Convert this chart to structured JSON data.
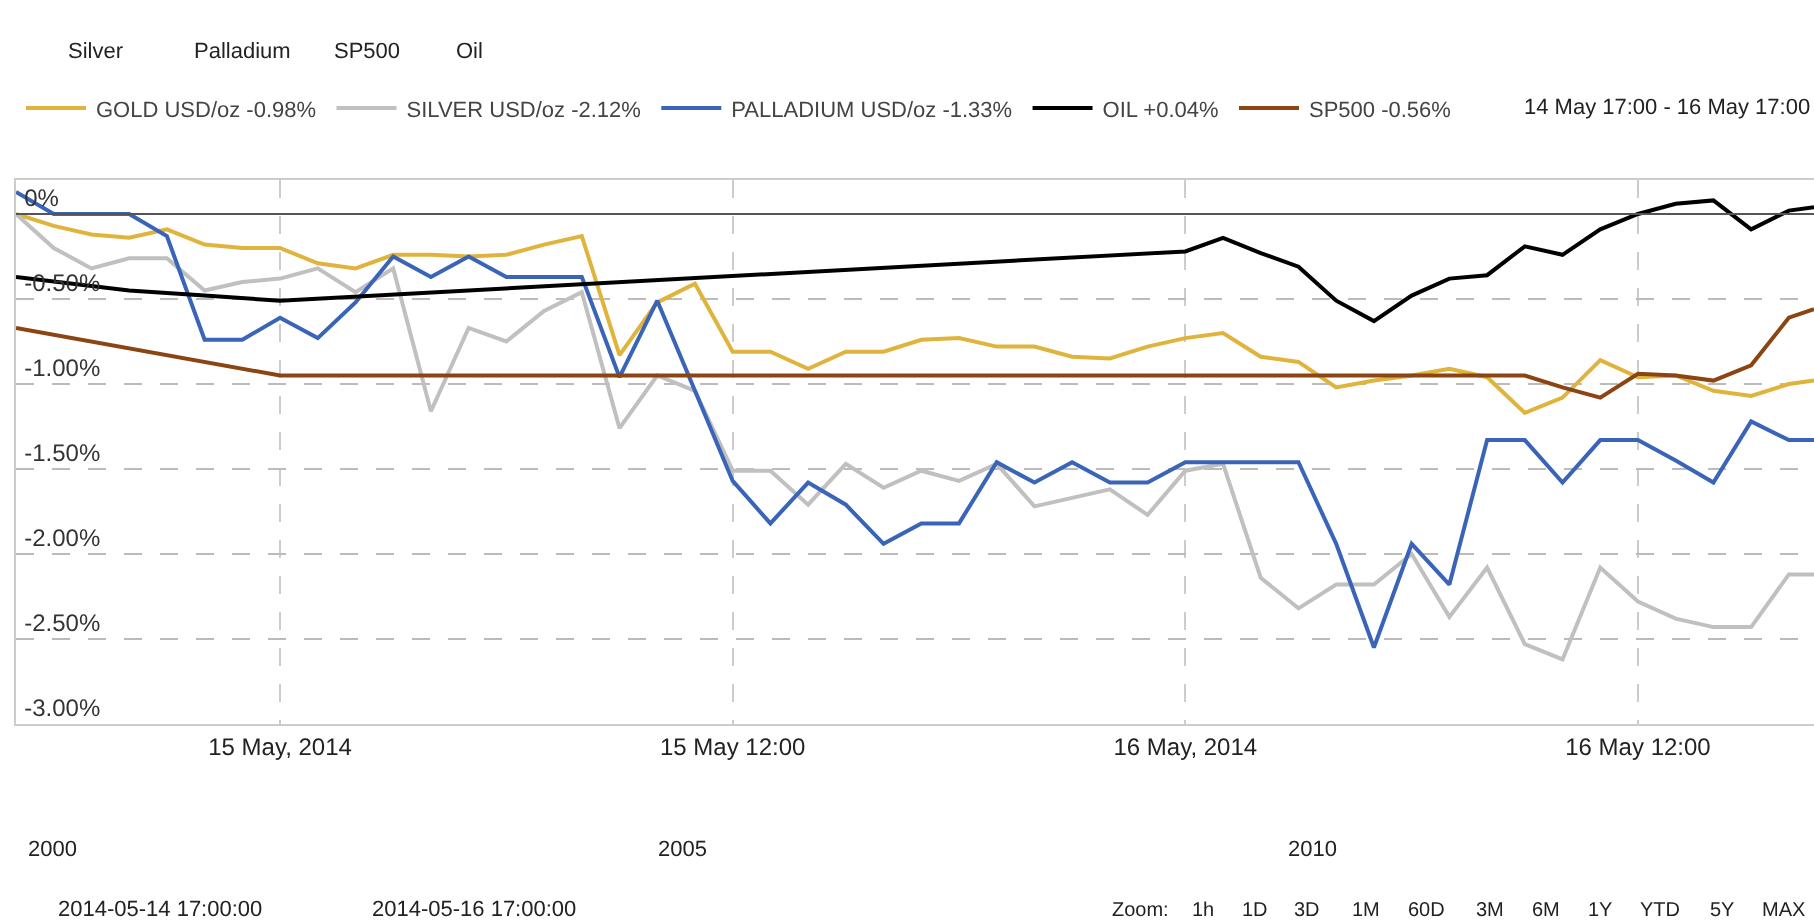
{
  "chart_data": {
    "type": "line",
    "subtitle": "14 May 17:00 - 16 May 17:00",
    "x": [
      "2014-05-14T17:00",
      "2014-05-14T18:00",
      "2014-05-14T19:00",
      "2014-05-14T20:00",
      "2014-05-14T21:00",
      "2014-05-14T22:00",
      "2014-05-14T23:00",
      "2014-05-15T00:00",
      "2014-05-15T01:00",
      "2014-05-15T02:00",
      "2014-05-15T03:00",
      "2014-05-15T04:00",
      "2014-05-15T05:00",
      "2014-05-15T06:00",
      "2014-05-15T07:00",
      "2014-05-15T08:00",
      "2014-05-15T09:00",
      "2014-05-15T10:00",
      "2014-05-15T11:00",
      "2014-05-15T12:00",
      "2014-05-15T13:00",
      "2014-05-15T14:00",
      "2014-05-15T15:00",
      "2014-05-15T16:00",
      "2014-05-15T17:00",
      "2014-05-15T18:00",
      "2014-05-15T19:00",
      "2014-05-15T20:00",
      "2014-05-15T21:00",
      "2014-05-15T22:00",
      "2014-05-15T23:00",
      "2014-05-16T00:00",
      "2014-05-16T01:00",
      "2014-05-16T02:00",
      "2014-05-16T03:00",
      "2014-05-16T04:00",
      "2014-05-16T05:00",
      "2014-05-16T06:00",
      "2014-05-16T07:00",
      "2014-05-16T08:00",
      "2014-05-16T09:00",
      "2014-05-16T10:00",
      "2014-05-16T11:00",
      "2014-05-16T12:00",
      "2014-05-16T13:00",
      "2014-05-16T14:00",
      "2014-05-16T15:00",
      "2014-05-16T16:00",
      "2014-05-16T16:40"
    ],
    "series": [
      {
        "name": "GOLD USD/oz -0.98%",
        "color": "#e0b43c",
        "values": [
          0,
          -0.07,
          -0.12,
          -0.14,
          -0.09,
          -0.18,
          -0.2,
          -0.2,
          -0.29,
          -0.32,
          -0.24,
          -0.24,
          -0.25,
          -0.24,
          -0.18,
          -0.13,
          -0.83,
          -0.52,
          -0.41,
          -0.81,
          -0.81,
          -0.91,
          -0.81,
          -0.81,
          -0.74,
          -0.73,
          -0.78,
          -0.78,
          -0.84,
          -0.85,
          -0.78,
          -0.73,
          -0.7,
          -0.84,
          -0.87,
          -1.02,
          -0.98,
          -0.95,
          -0.91,
          -0.96,
          -1.17,
          -1.08,
          -0.86,
          -0.96,
          -0.95,
          -1.04,
          -1.07,
          -1.0,
          -0.98
        ]
      },
      {
        "name": "SILVER USD/oz -2.12%",
        "color": "#c0c0c0",
        "values": [
          0,
          -0.2,
          -0.32,
          -0.26,
          -0.26,
          -0.45,
          -0.4,
          -0.38,
          -0.32,
          -0.46,
          -0.32,
          -1.16,
          -0.67,
          -0.75,
          -0.57,
          -0.46,
          -1.26,
          -0.95,
          -1.04,
          -1.51,
          -1.51,
          -1.71,
          -1.47,
          -1.61,
          -1.51,
          -1.57,
          -1.47,
          -1.72,
          -1.67,
          -1.62,
          -1.77,
          -1.51,
          -1.47,
          -2.14,
          -2.32,
          -2.18,
          -2.18,
          -2.0,
          -2.37,
          -2.08,
          -2.53,
          -2.62,
          -2.08,
          -2.28,
          -2.38,
          -2.43,
          -2.43,
          -2.12,
          -2.12
        ]
      },
      {
        "name": "PALLADIUM USD/oz -1.33%",
        "color": "#3a64b8",
        "values": [
          0.13,
          0,
          0,
          0,
          -0.13,
          -0.74,
          -0.74,
          -0.61,
          -0.73,
          -0.52,
          -0.25,
          -0.37,
          -0.25,
          -0.37,
          -0.37,
          -0.37,
          -0.96,
          -0.51,
          -1.04,
          -1.57,
          -1.82,
          -1.58,
          -1.71,
          -1.94,
          -1.82,
          -1.82,
          -1.46,
          -1.58,
          -1.46,
          -1.58,
          -1.58,
          -1.46,
          -1.46,
          -1.46,
          -1.46,
          -1.94,
          -2.55,
          -1.94,
          -2.18,
          -1.33,
          -1.33,
          -1.58,
          -1.33,
          -1.33,
          -1.45,
          -1.58,
          -1.22,
          -1.33,
          -1.33
        ]
      },
      {
        "name": "OIL +0.04%",
        "color": "#000000",
        "x": [
          "2014-05-14T17:00",
          "2014-05-14T20:00",
          "2014-05-14T22:00",
          "2014-05-15T00:00",
          "2014-05-16T00:00",
          "2014-05-16T01:00",
          "2014-05-16T02:00",
          "2014-05-16T03:00",
          "2014-05-16T04:00",
          "2014-05-16T05:00",
          "2014-05-16T06:00",
          "2014-05-16T07:00",
          "2014-05-16T08:00",
          "2014-05-16T09:00",
          "2014-05-16T10:00",
          "2014-05-16T11:00",
          "2014-05-16T12:00",
          "2014-05-16T13:00",
          "2014-05-16T14:00",
          "2014-05-16T15:00",
          "2014-05-16T16:00",
          "2014-05-16T16:40"
        ],
        "values": [
          -0.37,
          -0.45,
          -0.48,
          -0.51,
          -0.22,
          -0.14,
          -0.23,
          -0.31,
          -0.51,
          -0.63,
          -0.48,
          -0.38,
          -0.36,
          -0.19,
          -0.24,
          -0.09,
          0,
          0.06,
          0.08,
          -0.09,
          0.02,
          0.04
        ]
      },
      {
        "name": "SP500 -0.56%",
        "color": "#8b4513",
        "x": [
          "2014-05-14T17:00",
          "2014-05-15T00:00",
          "2014-05-16T09:00",
          "2014-05-16T10:00",
          "2014-05-16T11:00",
          "2014-05-16T12:00",
          "2014-05-16T13:00",
          "2014-05-16T14:00",
          "2014-05-16T15:00",
          "2014-05-16T16:00",
          "2014-05-16T16:40"
        ],
        "values": [
          -0.67,
          -0.95,
          -0.95,
          -1.02,
          -1.08,
          -0.94,
          -0.95,
          -0.98,
          -0.89,
          -0.61,
          -0.56
        ]
      }
    ],
    "xlim": [
      "2014-05-14T17:00",
      "2014-05-16T16:40"
    ],
    "xticks": [
      {
        "value": "2014-05-15T00:00",
        "label": "15 May, 2014"
      },
      {
        "value": "2014-05-15T12:00",
        "label": "15 May 12:00"
      },
      {
        "value": "2014-05-16T00:00",
        "label": "16 May, 2014"
      },
      {
        "value": "2014-05-16T12:00",
        "label": "16 May 12:00"
      }
    ],
    "ylim": [
      -3.0,
      0.2
    ],
    "yticks": [
      {
        "value": 0,
        "label": "0%"
      },
      {
        "value": -0.5,
        "label": "-0.50%"
      },
      {
        "value": -1.0,
        "label": "-1.00%"
      },
      {
        "value": -1.5,
        "label": "-1.50%"
      },
      {
        "value": -2.0,
        "label": "-2.00%"
      },
      {
        "value": -2.5,
        "label": "-2.50%"
      },
      {
        "value": -3.0,
        "label": "-3.00%"
      }
    ],
    "ref_lines": [
      {
        "axis": "y",
        "value": 0,
        "color": "#555555"
      }
    ],
    "grid": true,
    "legend": "top",
    "marker": "none",
    "line_style": "solid",
    "annotations": [
      "Silver",
      "Palladium",
      "SP500",
      "Oil",
      "2000",
      "2005",
      "2010",
      "2014-05-14 17:00:00",
      "2014-05-16 17:00:00",
      "Zoom:",
      "1h",
      "1D",
      "3D",
      "1M",
      "60D",
      "3M",
      "6M",
      "1Y",
      "YTD",
      "5Y",
      "MAX"
    ]
  }
}
